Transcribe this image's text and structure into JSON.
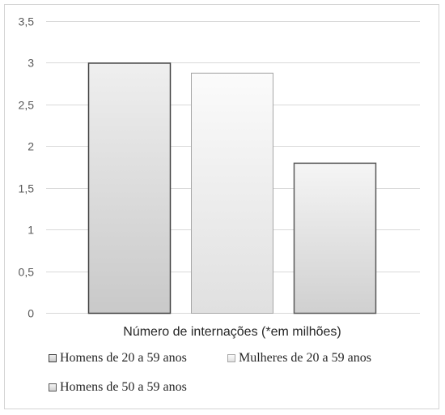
{
  "chart_data": {
    "type": "bar",
    "xlabel": "Número de internações (*em milhões)",
    "ylim": [
      0,
      3.5
    ],
    "yticks": [
      "0",
      "0,5",
      "1",
      "1,5",
      "2",
      "2,5",
      "3",
      "3,5"
    ],
    "grid": true,
    "legend_position": "bottom",
    "series": [
      {
        "name": "Homens de 20 a 59 anos",
        "values": [
          3.0
        ],
        "border": "#404040",
        "fill_top": "#efefef",
        "fill_bottom": "#c9c9c9"
      },
      {
        "name": "Mulheres de 20 a 59 anos",
        "values": [
          2.88
        ],
        "border": "#a6a6a6",
        "fill_top": "#fbfbfb",
        "fill_bottom": "#e0e0e0"
      },
      {
        "name": "Homens de 50 a 59 anos",
        "values": [
          1.8
        ],
        "border": "#595959",
        "fill_top": "#f5f5f5",
        "fill_bottom": "#d0d0d0"
      }
    ]
  }
}
